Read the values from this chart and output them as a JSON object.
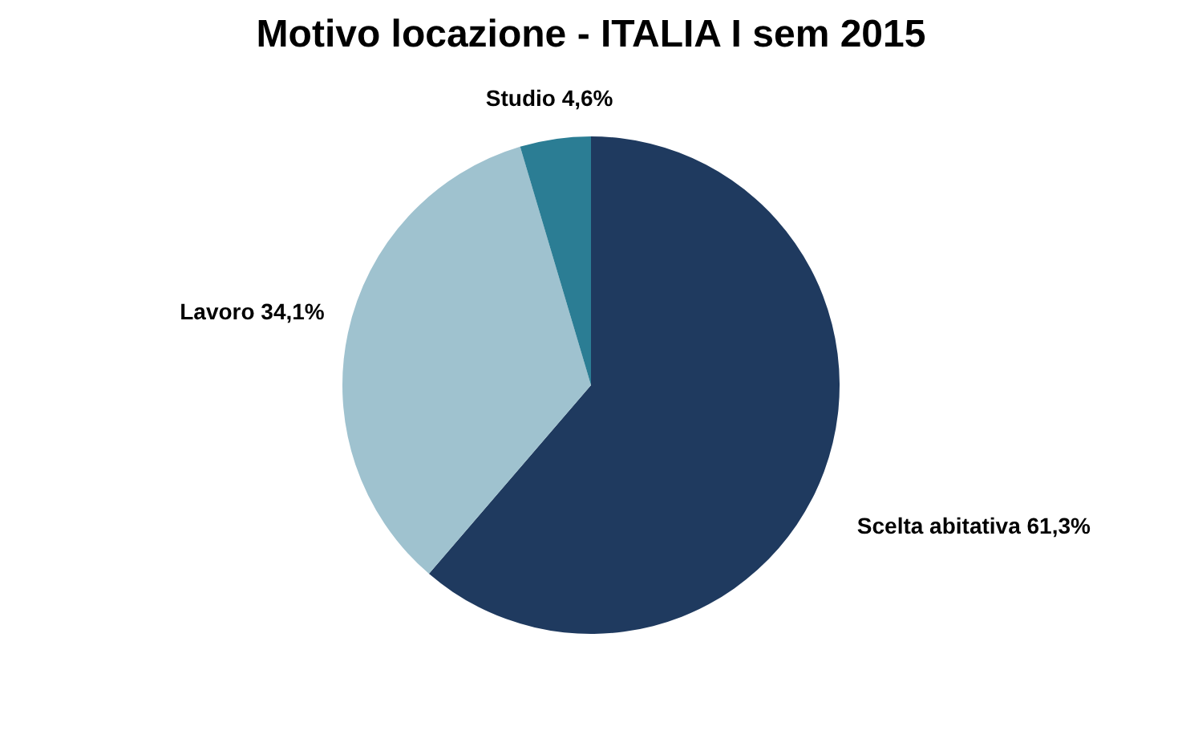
{
  "chart_data": {
    "type": "pie",
    "title": "Motivo locazione - ITALIA I sem 2015",
    "categories": [
      "Scelta abitativa",
      "Lavoro",
      "Studio"
    ],
    "values": [
      61.3,
      34.1,
      4.6
    ],
    "value_labels": [
      "61,3%",
      "34,1%",
      "4,6%"
    ],
    "colors": [
      "#1f3a5f",
      "#9fc2cf",
      "#2b7d94"
    ]
  }
}
